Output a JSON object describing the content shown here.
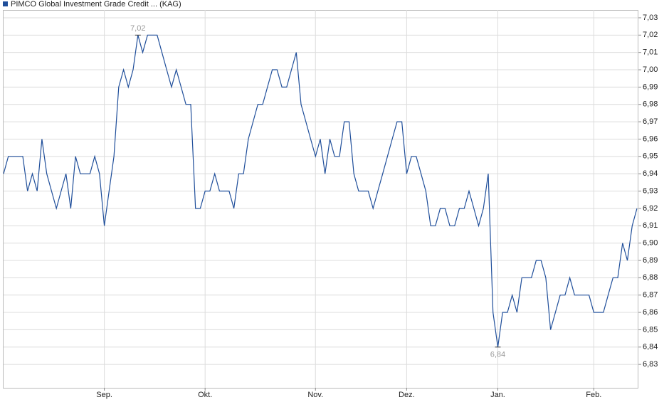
{
  "chart_data": {
    "type": "line",
    "series": [
      {
        "name": "PIMCO Global Investment Grade Credit ... (KAG)",
        "color": "#1f4e9a",
        "values": [
          6.94,
          6.95,
          6.95,
          6.95,
          6.95,
          6.93,
          6.94,
          6.93,
          6.96,
          6.94,
          6.93,
          6.92,
          6.93,
          6.94,
          6.92,
          6.95,
          6.94,
          6.94,
          6.94,
          6.95,
          6.94,
          6.91,
          6.93,
          6.95,
          6.99,
          7.0,
          6.99,
          7.0,
          7.02,
          7.01,
          7.02,
          7.02,
          7.02,
          7.01,
          7.0,
          6.99,
          7.0,
          6.99,
          6.98,
          6.98,
          6.92,
          6.92,
          6.93,
          6.93,
          6.94,
          6.93,
          6.93,
          6.93,
          6.92,
          6.94,
          6.94,
          6.96,
          6.97,
          6.98,
          6.98,
          6.99,
          7.0,
          7.0,
          6.99,
          6.99,
          7.0,
          7.01,
          6.98,
          6.97,
          6.96,
          6.95,
          6.96,
          6.94,
          6.96,
          6.95,
          6.95,
          6.97,
          6.97,
          6.94,
          6.93,
          6.93,
          6.93,
          6.92,
          6.93,
          6.94,
          6.95,
          6.96,
          6.97,
          6.97,
          6.94,
          6.95,
          6.95,
          6.94,
          6.93,
          6.91,
          6.91,
          6.92,
          6.92,
          6.91,
          6.91,
          6.92,
          6.92,
          6.93,
          6.92,
          6.91,
          6.92,
          6.94,
          6.86,
          6.84,
          6.86,
          6.86,
          6.87,
          6.86,
          6.88,
          6.88,
          6.88,
          6.89,
          6.89,
          6.88,
          6.85,
          6.86,
          6.87,
          6.87,
          6.88,
          6.87,
          6.87,
          6.87,
          6.87,
          6.86,
          6.86,
          6.86,
          6.87,
          6.88,
          6.88,
          6.9,
          6.89,
          6.91,
          6.92
        ]
      }
    ],
    "xlim": [
      0,
      132
    ],
    "xticks": [
      {
        "value": 21,
        "label": "Sep."
      },
      {
        "value": 42,
        "label": "Okt."
      },
      {
        "value": 65,
        "label": "Nov."
      },
      {
        "value": 84,
        "label": "Dez."
      },
      {
        "value": 103,
        "label": "Jan."
      },
      {
        "value": 123,
        "label": "Feb."
      }
    ],
    "ylim": [
      6.8165,
      7.0345
    ],
    "yticks": [
      {
        "value": 6.83,
        "label": "6,83"
      },
      {
        "value": 6.84,
        "label": "6,84"
      },
      {
        "value": 6.85,
        "label": "6,85"
      },
      {
        "value": 6.86,
        "label": "6,86"
      },
      {
        "value": 6.87,
        "label": "6,87"
      },
      {
        "value": 6.88,
        "label": "6,88"
      },
      {
        "value": 6.89,
        "label": "6,89"
      },
      {
        "value": 6.9,
        "label": "6,90"
      },
      {
        "value": 6.91,
        "label": "6,91"
      },
      {
        "value": 6.92,
        "label": "6,92"
      },
      {
        "value": 6.93,
        "label": "6,93"
      },
      {
        "value": 6.94,
        "label": "6,94"
      },
      {
        "value": 6.95,
        "label": "6,95"
      },
      {
        "value": 6.96,
        "label": "6,96"
      },
      {
        "value": 6.97,
        "label": "6,97"
      },
      {
        "value": 6.98,
        "label": "6,98"
      },
      {
        "value": 6.99,
        "label": "6,99"
      },
      {
        "value": 7.0,
        "label": "7,00"
      },
      {
        "value": 7.01,
        "label": "7,01"
      },
      {
        "value": 7.02,
        "label": "7,02"
      },
      {
        "value": 7.03,
        "label": "7,03"
      }
    ],
    "grid": true,
    "annotations": [
      {
        "label": "7,02",
        "x": 28,
        "value": 7.02,
        "position": "above"
      },
      {
        "label": "6,84",
        "x": 103,
        "value": 6.84,
        "position": "below"
      }
    ]
  }
}
